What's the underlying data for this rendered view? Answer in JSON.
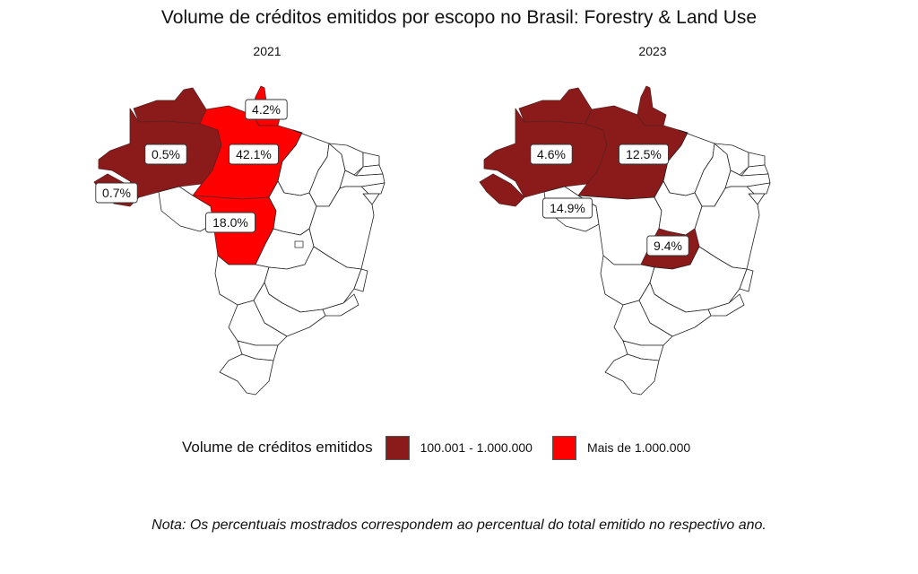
{
  "title": "Volume de créditos emitidos por escopo no Brasil: Forestry & Land Use",
  "panels": [
    {
      "year": "2021",
      "labels": [
        {
          "state": "AM",
          "text": "0.5%"
        },
        {
          "state": "AC",
          "text": "0.7%"
        },
        {
          "state": "AP",
          "text": "4.2%"
        },
        {
          "state": "PA",
          "text": "42.1%"
        },
        {
          "state": "MT",
          "text": "18.0%"
        }
      ]
    },
    {
      "year": "2023",
      "labels": [
        {
          "state": "AM",
          "text": "4.6%"
        },
        {
          "state": "PA",
          "text": "12.5%"
        },
        {
          "state": "RO",
          "text": "14.9%"
        },
        {
          "state": "GO",
          "text": "9.4%"
        }
      ]
    }
  ],
  "legend": {
    "title": "Volume de créditos emitidos",
    "items": [
      {
        "label": "100.001 - 1.000.000",
        "color": "#8B1A1A"
      },
      {
        "label": "Mais de 1.000.000",
        "color": "#FF0000"
      }
    ]
  },
  "fills": {
    "2021": {
      "AM": "dark",
      "AC": "dark",
      "RR": "dark",
      "PA": "bright",
      "AP": "bright",
      "MT": "bright"
    },
    "2023": {
      "AM": "dark",
      "AC": "dark",
      "RR": "dark",
      "PA": "dark",
      "AP": "dark",
      "GO": "dark"
    }
  },
  "note": "Nota: Os percentuais mostrados correspondem ao percentual do total emitido no respectivo ano."
}
